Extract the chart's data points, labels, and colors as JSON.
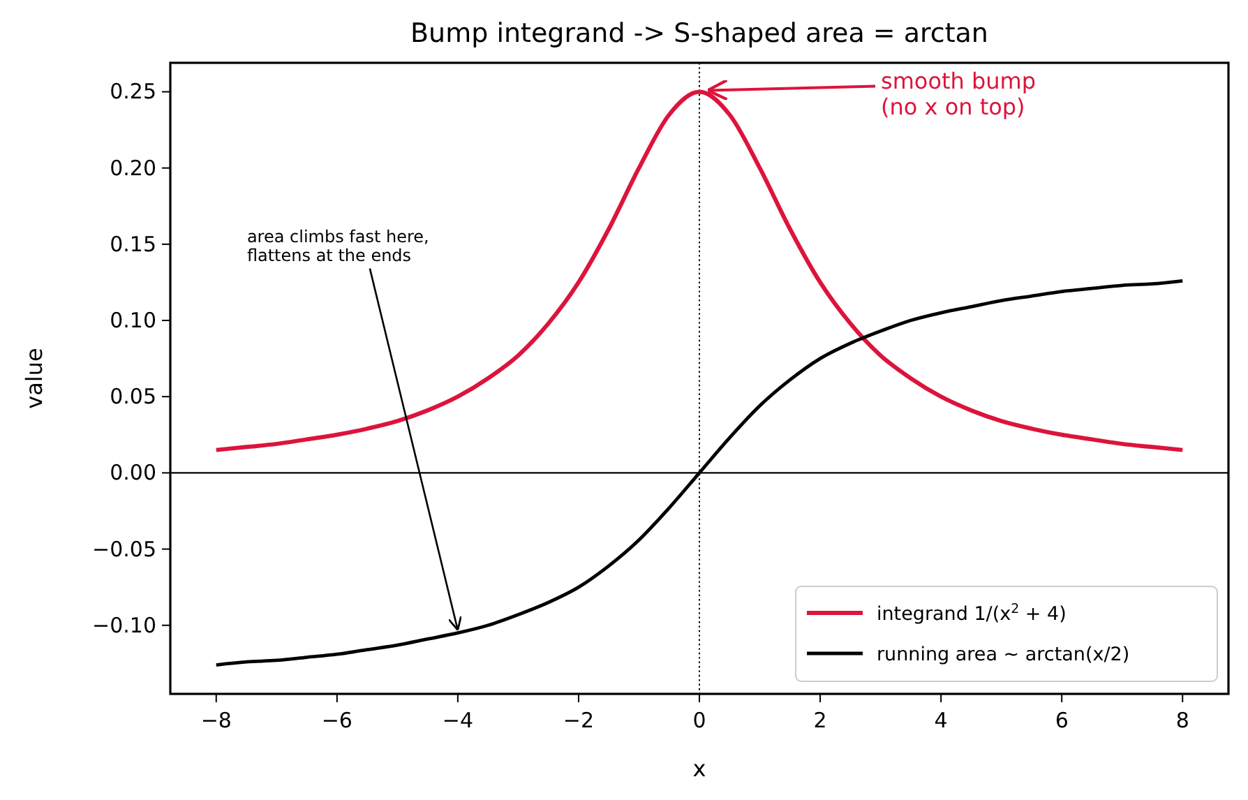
{
  "chart_data": {
    "type": "line",
    "title": "Bump integrand -> S-shaped area = arctan",
    "xlabel": "x",
    "ylabel": "value",
    "x": [
      -8,
      -7.5,
      -7,
      -6.5,
      -6,
      -5.5,
      -5,
      -4.5,
      -4,
      -3.5,
      -3,
      -2.5,
      -2,
      -1.5,
      -1,
      -0.5,
      0,
      0.5,
      1,
      1.5,
      2,
      2.5,
      3,
      3.5,
      4,
      4.5,
      5,
      5.5,
      6,
      6.5,
      7,
      7.5,
      8
    ],
    "series": [
      {
        "name": "integrand 1/(x$^{2}$ + 4)",
        "color": "#dc143c",
        "values": [
          0.015,
          0.017,
          0.019,
          0.022,
          0.025,
          0.029,
          0.034,
          0.041,
          0.05,
          0.062,
          0.077,
          0.098,
          0.125,
          0.16,
          0.2,
          0.235,
          0.25,
          0.235,
          0.2,
          0.16,
          0.125,
          0.098,
          0.077,
          0.062,
          0.05,
          0.041,
          0.034,
          0.029,
          0.025,
          0.022,
          0.019,
          0.017,
          0.015
        ]
      },
      {
        "name": "running area ~ arctan(x/2)",
        "color": "#000000",
        "values": [
          -0.126,
          -0.124,
          -0.123,
          -0.121,
          -0.119,
          -0.116,
          -0.113,
          -0.109,
          -0.105,
          -0.1,
          -0.093,
          -0.085,
          -0.075,
          -0.061,
          -0.044,
          -0.023,
          0,
          0.023,
          0.044,
          0.061,
          0.075,
          0.085,
          0.093,
          0.1,
          0.105,
          0.109,
          0.113,
          0.116,
          0.119,
          0.121,
          0.123,
          0.124,
          0.126
        ]
      }
    ],
    "xlim": [
      -8.76,
      8.76
    ],
    "ylim": [
      -0.145,
      0.269
    ],
    "xticks": [
      {
        "value": -8,
        "label": "−8"
      },
      {
        "value": -6,
        "label": "−6"
      },
      {
        "value": -4,
        "label": "−4"
      },
      {
        "value": -2,
        "label": "−2"
      },
      0,
      2,
      4,
      6,
      8
    ],
    "yticks": [
      {
        "value": -0.1,
        "label": "−0.10"
      },
      {
        "value": -0.05,
        "label": "−0.05"
      },
      {
        "value": 0,
        "label": "0.00"
      },
      {
        "value": 0.05,
        "label": "0.05"
      },
      {
        "value": 0.1,
        "label": "0.10"
      },
      {
        "value": 0.15,
        "label": "0.15"
      },
      {
        "value": 0.2,
        "label": "0.20"
      },
      0.25
    ],
    "ref_lines": [
      {
        "axis": "y",
        "value": 0,
        "color": "#000000",
        "line_style": "solid"
      },
      {
        "axis": "x",
        "value": 0,
        "color": "#000000",
        "line_style": "dotted"
      }
    ],
    "annotations": [
      {
        "text": "smooth bump\n(no x on top)",
        "x": 0,
        "y": 0.25
      },
      {
        "text": "area climbs fast here,\nflattens at the ends",
        "x": -4,
        "y": -0.105
      }
    ],
    "legend": "bottom right",
    "grid": false,
    "line_style": "solid"
  }
}
